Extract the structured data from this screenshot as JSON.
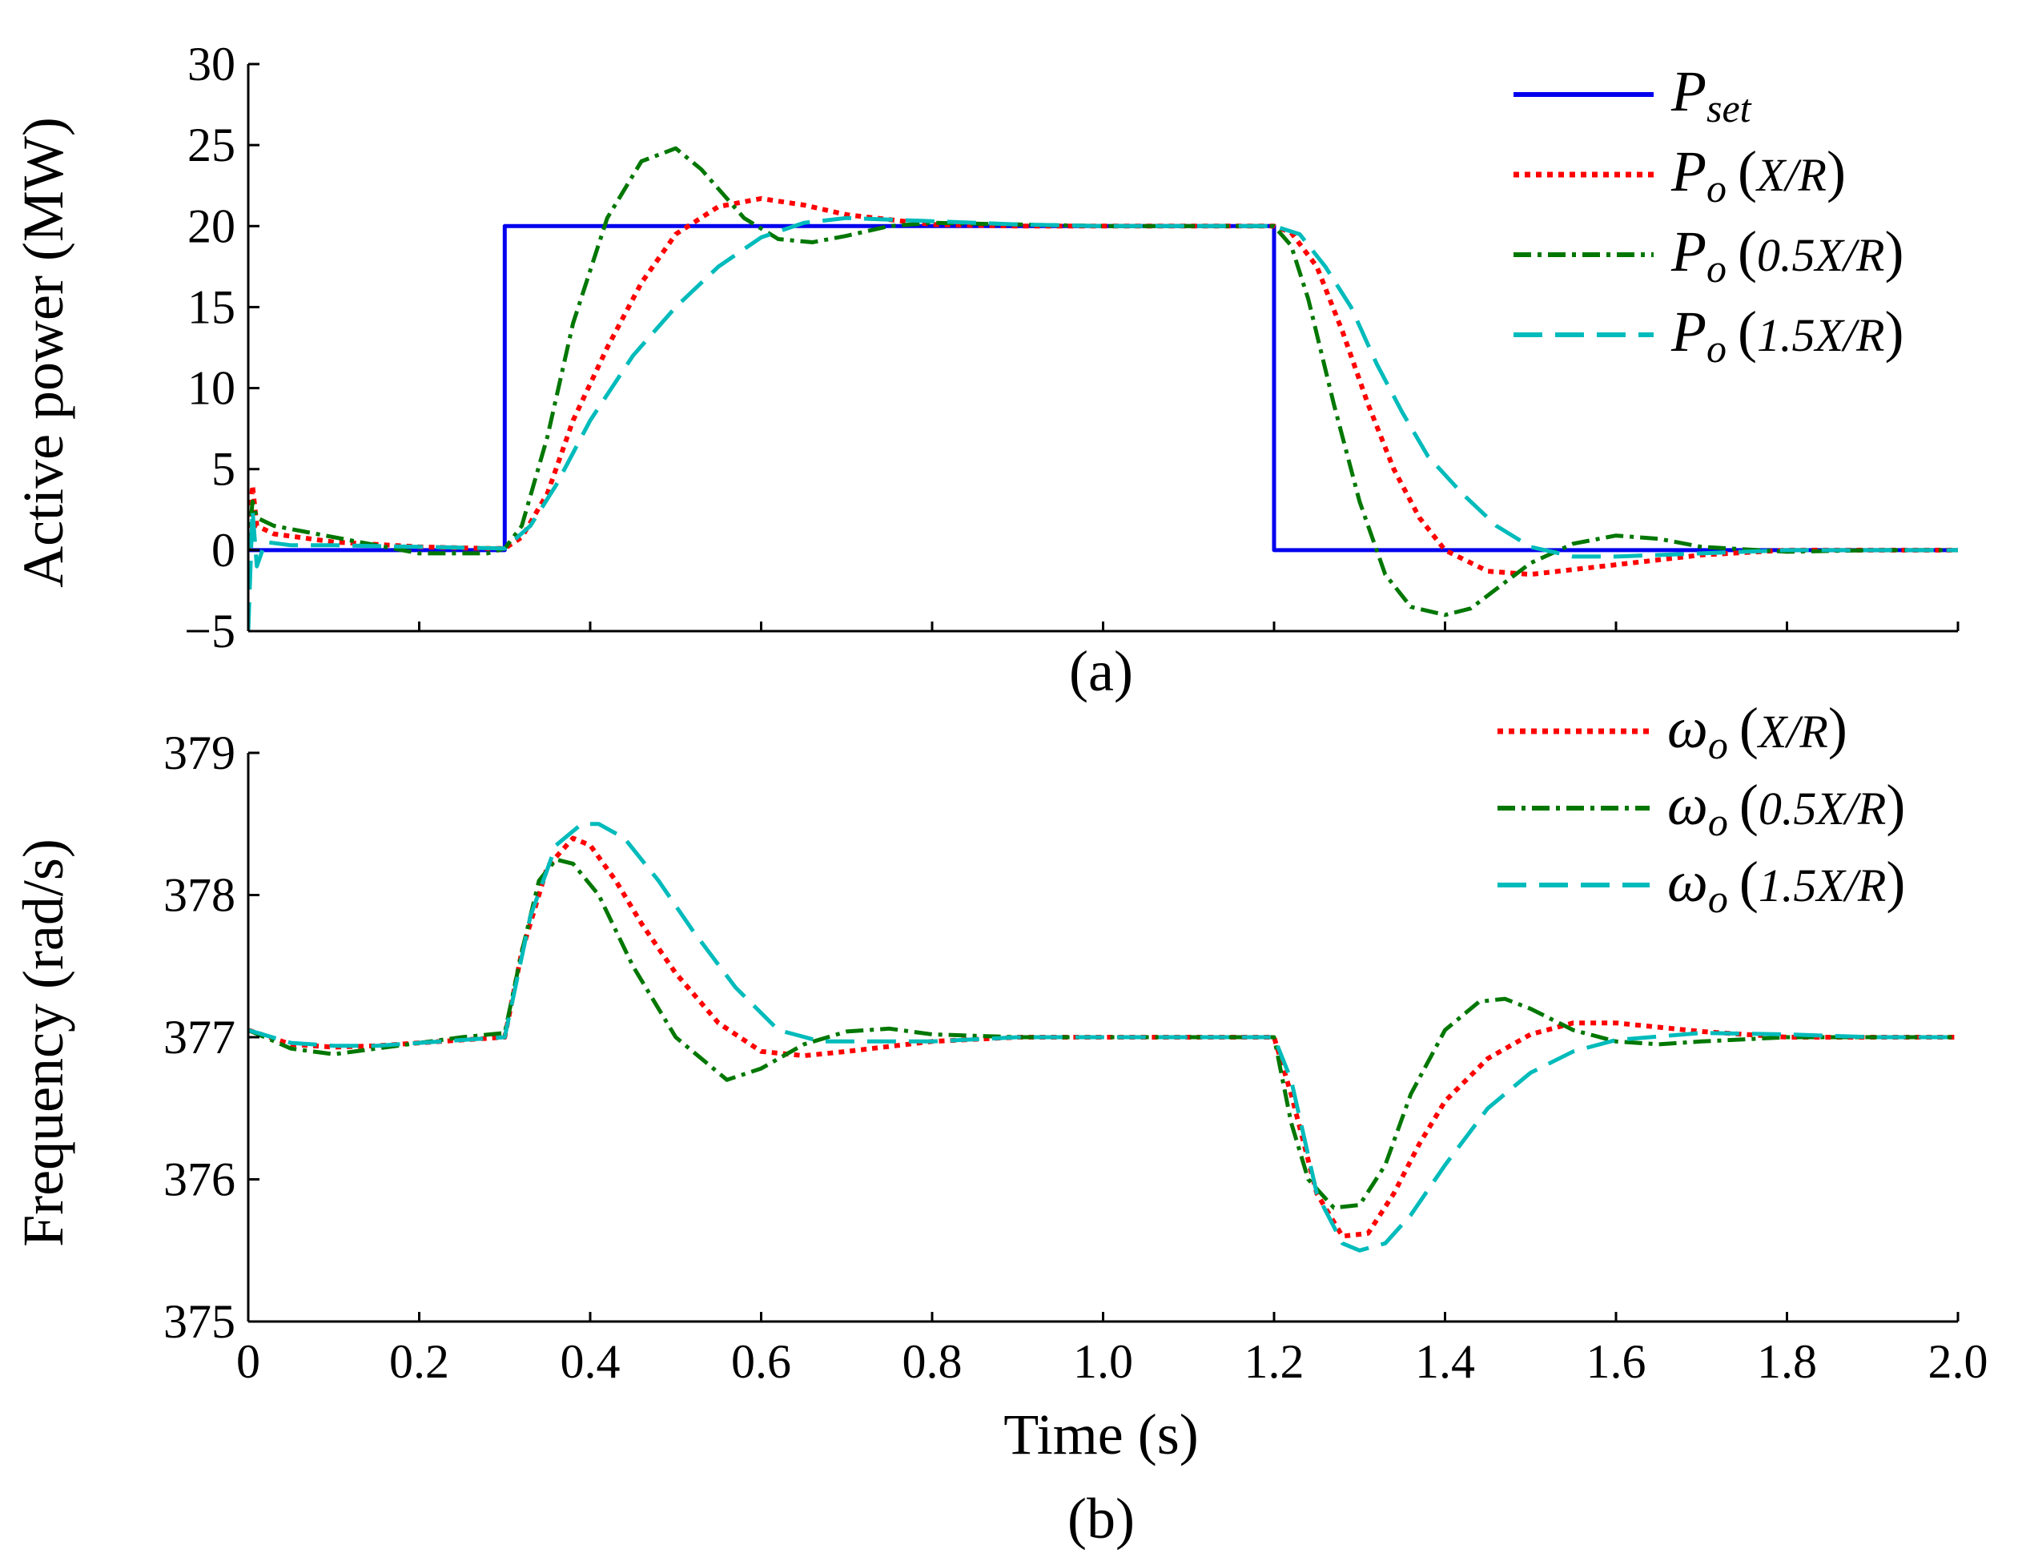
{
  "colors": {
    "pset": "#0000ee",
    "xr": "#ff0000",
    "half": "#007700",
    "onehalf": "#00bbbb",
    "axis": "#000000"
  },
  "chart_data": [
    {
      "id": "a",
      "type": "line",
      "panel_label": "(a)",
      "ylabel": "Active power (MW)",
      "xlabel": "",
      "xlim": [
        0,
        2.0
      ],
      "ylim": [
        -5,
        30
      ],
      "yticks": [
        -5,
        0,
        5,
        10,
        15,
        20,
        25,
        30
      ],
      "ytick_labels": [
        "−5",
        "0",
        "5",
        "10",
        "15",
        "20",
        "25",
        "30"
      ],
      "xticks": [
        0,
        0.2,
        0.4,
        0.6,
        0.8,
        1.0,
        1.2,
        1.4,
        1.6,
        1.8,
        2.0
      ],
      "xtick_labels_shown": false,
      "legend_position": "top-right",
      "series": [
        {
          "key": "pset",
          "name": "P",
          "subscript": "set",
          "arg": "",
          "style": "solid",
          "x": [
            0,
            0.3,
            0.3,
            1.2,
            1.2,
            2.0
          ],
          "y": [
            0,
            0,
            20,
            20,
            0,
            0
          ]
        },
        {
          "key": "xr",
          "name": "P",
          "subscript": "o",
          "arg": "X/R",
          "style": "dotted",
          "x": [
            0,
            0.005,
            0.01,
            0.03,
            0.1,
            0.2,
            0.28,
            0.3,
            0.32,
            0.35,
            0.38,
            0.42,
            0.46,
            0.5,
            0.55,
            0.6,
            0.65,
            0.7,
            0.8,
            0.9,
            1.0,
            1.1,
            1.2,
            1.22,
            1.25,
            1.28,
            1.31,
            1.34,
            1.37,
            1.4,
            1.45,
            1.5,
            1.55,
            1.6,
            1.7,
            1.8,
            1.9,
            2.0
          ],
          "y": [
            0,
            4.0,
            1.5,
            1.0,
            0.5,
            0.2,
            0.1,
            0.1,
            0.8,
            3.5,
            8.0,
            12.5,
            16.5,
            19.5,
            21.2,
            21.7,
            21.3,
            20.7,
            20.1,
            20.0,
            20.0,
            20.0,
            20.0,
            19.6,
            17.5,
            13.5,
            9.0,
            5.0,
            2.0,
            0.0,
            -1.3,
            -1.5,
            -1.2,
            -0.9,
            -0.3,
            0.0,
            0.0,
            0.0
          ]
        },
        {
          "key": "half",
          "name": "P",
          "subscript": "o",
          "arg": "0.5X/R",
          "style": "dashdot",
          "x": [
            0,
            0.005,
            0.01,
            0.03,
            0.1,
            0.2,
            0.28,
            0.3,
            0.32,
            0.35,
            0.38,
            0.42,
            0.46,
            0.5,
            0.53,
            0.58,
            0.62,
            0.66,
            0.7,
            0.75,
            0.8,
            0.9,
            1.0,
            1.1,
            1.2,
            1.22,
            1.24,
            1.27,
            1.3,
            1.33,
            1.36,
            1.4,
            1.43,
            1.47,
            1.5,
            1.55,
            1.6,
            1.65,
            1.7,
            1.8,
            1.9,
            2.0
          ],
          "y": [
            0,
            3.0,
            2.0,
            1.5,
            0.8,
            -0.2,
            -0.2,
            0.1,
            1.5,
            7.0,
            14.0,
            20.5,
            24.0,
            24.8,
            23.5,
            20.5,
            19.2,
            19.0,
            19.4,
            20.0,
            20.2,
            20.1,
            20.0,
            20.0,
            20.0,
            18.8,
            15.5,
            9.0,
            3.0,
            -1.5,
            -3.5,
            -4.0,
            -3.6,
            -2.0,
            -0.8,
            0.4,
            0.9,
            0.7,
            0.2,
            -0.1,
            0.0,
            0.0
          ]
        },
        {
          "key": "onehalf",
          "name": "P",
          "subscript": "o",
          "arg": "1.5X/R",
          "style": "dashed",
          "x": [
            0,
            0.005,
            0.01,
            0.02,
            0.05,
            0.1,
            0.2,
            0.3,
            0.33,
            0.36,
            0.4,
            0.45,
            0.5,
            0.55,
            0.6,
            0.65,
            0.7,
            0.8,
            0.9,
            1.0,
            1.1,
            1.2,
            1.23,
            1.26,
            1.29,
            1.32,
            1.35,
            1.38,
            1.42,
            1.46,
            1.5,
            1.55,
            1.6,
            1.7,
            1.8,
            1.9,
            2.0
          ],
          "y": [
            -5.0,
            2.5,
            -1.0,
            0.5,
            0.3,
            0.3,
            0.2,
            0.1,
            1.5,
            4.0,
            8.0,
            12.0,
            15.0,
            17.5,
            19.3,
            20.2,
            20.5,
            20.3,
            20.1,
            20.0,
            20.0,
            20.0,
            19.5,
            17.5,
            15.0,
            11.5,
            8.5,
            5.8,
            3.5,
            1.5,
            0.2,
            -0.4,
            -0.4,
            -0.2,
            0.0,
            0.0,
            0.0
          ]
        }
      ]
    },
    {
      "id": "b",
      "type": "line",
      "panel_label": "(b)",
      "ylabel": "Frequency (rad/s)",
      "xlabel": "Time (s)",
      "xlim": [
        0,
        2.0
      ],
      "ylim": [
        375,
        379
      ],
      "yticks": [
        375,
        376,
        377,
        378,
        379
      ],
      "ytick_labels": [
        "375",
        "376",
        "377",
        "378",
        "379"
      ],
      "xticks": [
        0,
        0.2,
        0.4,
        0.6,
        0.8,
        1.0,
        1.2,
        1.4,
        1.6,
        1.8,
        2.0
      ],
      "xtick_labels": [
        "0",
        "0.2",
        "0.4",
        "0.6",
        "0.8",
        "1.0",
        "1.2",
        "1.4",
        "1.6",
        "1.8",
        "2.0"
      ],
      "legend_position": "top-right",
      "series": [
        {
          "key": "xr",
          "name": "ω",
          "subscript": "o",
          "arg": "X/R",
          "style": "dotted",
          "x": [
            0,
            0.05,
            0.1,
            0.15,
            0.2,
            0.25,
            0.3,
            0.32,
            0.35,
            0.38,
            0.4,
            0.43,
            0.46,
            0.5,
            0.55,
            0.6,
            0.65,
            0.7,
            0.8,
            0.9,
            1.0,
            1.1,
            1.2,
            1.22,
            1.25,
            1.28,
            1.31,
            1.34,
            1.37,
            1.4,
            1.45,
            1.5,
            1.55,
            1.6,
            1.7,
            1.8,
            1.9,
            2.0
          ],
          "y": [
            377.05,
            376.95,
            376.93,
            376.94,
            376.96,
            376.98,
            377.0,
            377.6,
            378.2,
            378.4,
            378.35,
            378.1,
            377.8,
            377.45,
            377.1,
            376.9,
            376.87,
            376.9,
            376.97,
            377.0,
            377.0,
            377.0,
            377.0,
            376.6,
            375.9,
            375.6,
            375.62,
            375.9,
            376.25,
            376.55,
            376.85,
            377.02,
            377.1,
            377.1,
            377.04,
            377.0,
            377.0,
            377.0
          ]
        },
        {
          "key": "half",
          "name": "ω",
          "subscript": "o",
          "arg": "0.5X/R",
          "style": "dashdot",
          "x": [
            0,
            0.05,
            0.1,
            0.15,
            0.2,
            0.25,
            0.3,
            0.32,
            0.34,
            0.36,
            0.38,
            0.41,
            0.45,
            0.5,
            0.56,
            0.6,
            0.65,
            0.7,
            0.75,
            0.8,
            0.9,
            1.0,
            1.1,
            1.2,
            1.22,
            1.24,
            1.27,
            1.3,
            1.33,
            1.36,
            1.4,
            1.44,
            1.47,
            1.5,
            1.55,
            1.6,
            1.65,
            1.7,
            1.8,
            1.9,
            2.0
          ],
          "y": [
            377.05,
            376.92,
            376.88,
            376.92,
            376.96,
            377.0,
            377.03,
            377.6,
            378.1,
            378.25,
            378.22,
            378.0,
            377.5,
            377.0,
            376.7,
            376.78,
            376.95,
            377.04,
            377.06,
            377.02,
            377.0,
            377.0,
            377.0,
            377.0,
            376.4,
            376.0,
            375.8,
            375.82,
            376.1,
            376.6,
            377.05,
            377.25,
            377.27,
            377.2,
            377.05,
            376.97,
            376.95,
            376.97,
            377.0,
            377.0,
            377.0
          ]
        },
        {
          "key": "onehalf",
          "name": "ω",
          "subscript": "o",
          "arg": "1.5X/R",
          "style": "dashed",
          "x": [
            0,
            0.05,
            0.1,
            0.15,
            0.2,
            0.25,
            0.3,
            0.33,
            0.36,
            0.39,
            0.41,
            0.44,
            0.48,
            0.52,
            0.57,
            0.62,
            0.67,
            0.72,
            0.8,
            0.9,
            1.0,
            1.1,
            1.2,
            1.22,
            1.25,
            1.28,
            1.3,
            1.33,
            1.36,
            1.4,
            1.45,
            1.5,
            1.55,
            1.6,
            1.7,
            1.8,
            1.9,
            2.0
          ],
          "y": [
            377.05,
            376.96,
            376.94,
            376.94,
            376.96,
            376.98,
            377.0,
            377.85,
            378.35,
            378.5,
            378.5,
            378.4,
            378.1,
            377.75,
            377.35,
            377.05,
            376.97,
            376.97,
            376.97,
            377.0,
            377.0,
            377.0,
            377.0,
            376.7,
            375.9,
            375.55,
            375.5,
            375.55,
            375.75,
            376.1,
            376.5,
            376.75,
            376.9,
            376.98,
            377.03,
            377.02,
            377.0,
            377.0
          ]
        }
      ]
    }
  ]
}
